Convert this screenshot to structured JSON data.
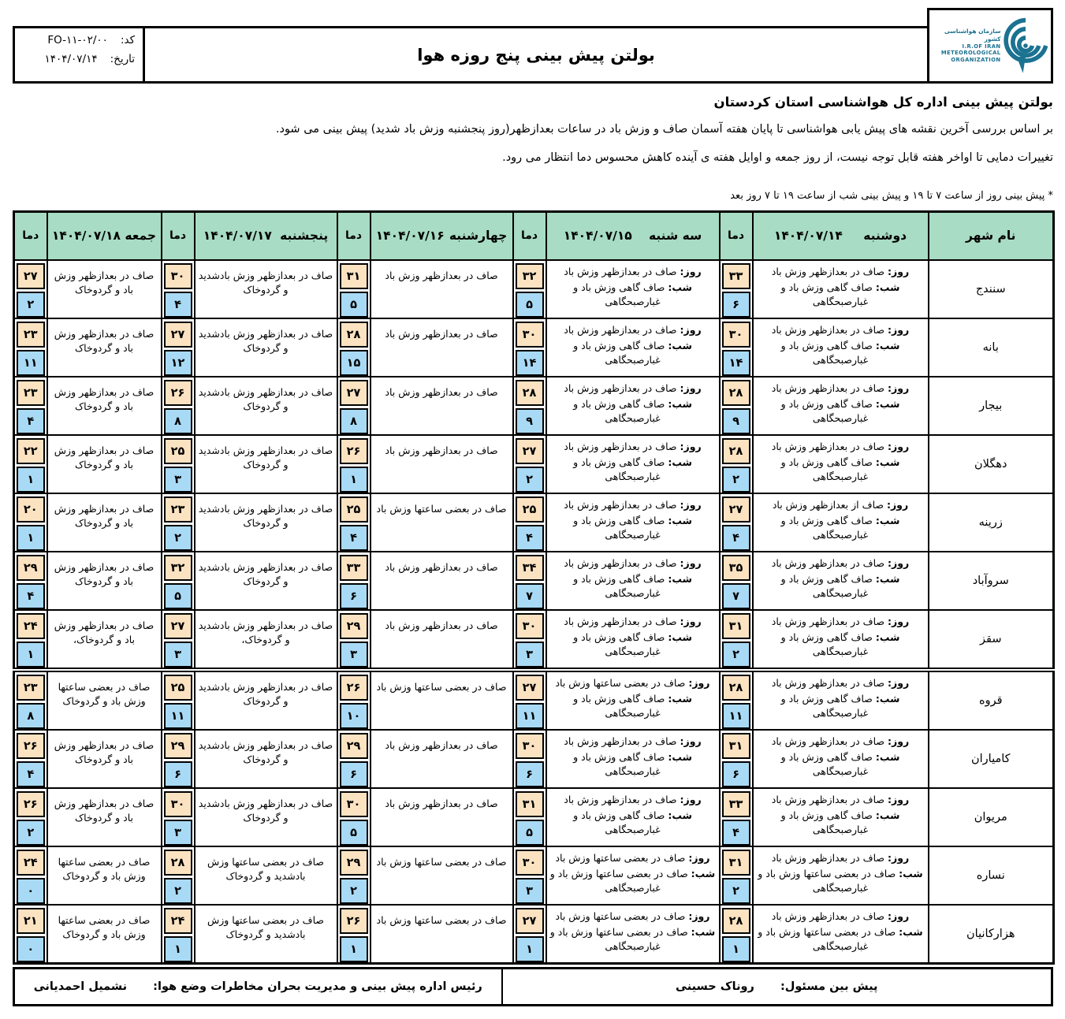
{
  "meta": {
    "code_label": "کد:",
    "code_value": "FO-۱۱-۰۲/۰۰",
    "date_label": "تاریخ:",
    "date_value": "۱۴۰۴/۰۷/۱۴"
  },
  "title": "بولتن پیش بینی پنج روزه هوا",
  "logo": {
    "line_fa": "سازمان هواشناسی کشور",
    "line1": "I.R.OF IRAN",
    "line2": "METEOROLOGICAL",
    "line3": "ORGANIZATION",
    "color": "#1b7291"
  },
  "intro": {
    "heading": "بولتن پیش بینی اداره کل هواشناسی استان کردستان",
    "line1": "بر اساس بررسی آخرین نقشه های پیش یابی هواشناسی تا پایان هفته آسمان صاف و وزش باد در ساعات بعدازظهر(روز پنجشنبه وزش باد شدید) پیش بینی می شود.",
    "line2": "تغییرات دمایی تا اواخر هفته قابل توجه نیست، از روز جمعه و اوایل هفته ی آینده کاهش محسوس دما انتظار می رود.",
    "note": "* پیش بینی روز از ساعت ۷ تا ۱۹ و پیش بینی شب از ساعت ۱۹ تا ۷ روز بعد"
  },
  "footer": {
    "right_label": "پیش بین مسئول:",
    "right_value": "روناک حسینی",
    "left_label": "رئیس اداره پیش بینی و مدیریت بحران مخاطرات وضع هوا:",
    "left_value": "نشمیل احمدیانی"
  },
  "table": {
    "city_header": "نام شهر",
    "temp_header": "دما",
    "colors": {
      "header_bg": "#a8dcc4",
      "day_temp_bg": "#fbe3c2",
      "night_temp_bg": "#a9daf5"
    },
    "days": [
      {
        "weekday": "دوشنبه",
        "date": "۱۴۰۴/۰۷/۱۴"
      },
      {
        "weekday": "سه شنبه",
        "date": "۱۴۰۴/۰۷/۱۵"
      },
      {
        "weekday": "چهارشنبه",
        "date": "۱۴۰۴/۰۷/۱۶"
      },
      {
        "weekday": "پنجشنبه",
        "date": "۱۴۰۴/۰۷/۱۷"
      },
      {
        "weekday": "جمعه",
        "date": "۱۴۰۴/۰۷/۱۸"
      }
    ],
    "rows": [
      {
        "city": "سنندج",
        "days": [
          {
            "day_label": "روز:",
            "day_text": "صاف در بعدازظهر وزش باد",
            "night_label": "شب:",
            "night_text": "صاف گاهی وزش باد و غبارصبحگاهی",
            "tmax": "۳۳",
            "tmin": "۶"
          },
          {
            "day_label": "روز:",
            "day_text": "صاف در بعدازظهر وزش باد",
            "night_label": "شب:",
            "night_text": "صاف گاهی وزش باد و غبارصبحگاهی",
            "tmax": "۳۲",
            "tmin": "۵"
          },
          {
            "text": "صاف در بعدازظهر وزش باد",
            "tmax": "۳۱",
            "tmin": "۵"
          },
          {
            "text": "صاف در بعدازظهر وزش بادشدید و گردوخاک",
            "tmax": "۳۰",
            "tmin": "۴"
          },
          {
            "text": "صاف در بعدازظهر وزش باد و گردوخاک",
            "tmax": "۲۷",
            "tmin": "۲"
          }
        ]
      },
      {
        "city": "بانه",
        "days": [
          {
            "day_label": "روز:",
            "day_text": "صاف در بعدازظهر وزش باد",
            "night_label": "شب:",
            "night_text": "صاف گاهی وزش باد و غبارصبحگاهی",
            "tmax": "۳۰",
            "tmin": "۱۴"
          },
          {
            "day_label": "روز:",
            "day_text": "صاف در بعدازظهر وزش باد",
            "night_label": "شب:",
            "night_text": "صاف گاهی وزش باد و غبارصبحگاهی",
            "tmax": "۳۰",
            "tmin": "۱۴"
          },
          {
            "text": "صاف در بعدازظهر وزش باد",
            "tmax": "۲۸",
            "tmin": "۱۵"
          },
          {
            "text": "صاف در بعدازظهر وزش بادشدید و گردوخاک",
            "tmax": "۲۷",
            "tmin": "۱۲"
          },
          {
            "text": "صاف در بعدازظهر وزش باد و گردوخاک",
            "tmax": "۲۳",
            "tmin": "۱۱"
          }
        ]
      },
      {
        "city": "بیجار",
        "days": [
          {
            "day_label": "روز:",
            "day_text": "صاف در بعدازظهر وزش باد",
            "night_label": "شب:",
            "night_text": "صاف گاهی وزش باد و غبارصبحگاهی",
            "tmax": "۲۸",
            "tmin": "۹"
          },
          {
            "day_label": "روز:",
            "day_text": "صاف در بعدازظهر وزش باد",
            "night_label": "شب:",
            "night_text": "صاف گاهی وزش باد و غبارصبحگاهی",
            "tmax": "۲۸",
            "tmin": "۹"
          },
          {
            "text": "صاف در بعدازظهر وزش باد",
            "tmax": "۲۷",
            "tmin": "۸"
          },
          {
            "text": "صاف در بعدازظهر وزش بادشدید و گردوخاک",
            "tmax": "۲۶",
            "tmin": "۸"
          },
          {
            "text": "صاف در بعدازظهر وزش باد و گردوخاک",
            "tmax": "۲۳",
            "tmin": "۴"
          }
        ]
      },
      {
        "city": "دهگلان",
        "days": [
          {
            "day_label": "روز:",
            "day_text": "صاف در بعدازظهر وزش باد",
            "night_label": "شب:",
            "night_text": "صاف گاهی وزش باد و غبارصبحگاهی",
            "tmax": "۲۸",
            "tmin": "۲"
          },
          {
            "day_label": "روز:",
            "day_text": "صاف در بعدازظهر وزش باد",
            "night_label": "شب:",
            "night_text": "صاف گاهی وزش باد و غبارصبحگاهی",
            "tmax": "۲۷",
            "tmin": "۲"
          },
          {
            "text": "صاف در بعدازظهر وزش باد",
            "tmax": "۲۶",
            "tmin": "۱"
          },
          {
            "text": "صاف در بعدازظهر وزش بادشدید و گردوخاک",
            "tmax": "۲۵",
            "tmin": "۳"
          },
          {
            "text": "صاف در بعدازظهر وزش باد و گردوخاک",
            "tmax": "۲۲",
            "tmin": "۱"
          }
        ]
      },
      {
        "city": "زرینه",
        "days": [
          {
            "day_label": "روز:",
            "day_text": "صاف از بعدازظهر وزش باد",
            "night_label": "شب:",
            "night_text": "صاف گاهی وزش باد و غبارصبحگاهی",
            "tmax": "۲۷",
            "tmin": "۴"
          },
          {
            "day_label": "روز:",
            "day_text": "صاف در بعدازظهر وزش باد",
            "night_label": "شب:",
            "night_text": "صاف گاهی وزش باد و غبارصبحگاهی",
            "tmax": "۲۵",
            "tmin": "۴"
          },
          {
            "text": "صاف در بعضی ساعتها وزش باد",
            "tmax": "۲۵",
            "tmin": "۴"
          },
          {
            "text": "صاف در بعدازظهر وزش بادشدید و گردوخاک",
            "tmax": "۲۳",
            "tmin": "۲"
          },
          {
            "text": "صاف در بعدازظهر وزش باد و گردوخاک",
            "tmax": "۲۰",
            "tmin": "۱"
          }
        ]
      },
      {
        "city": "سروآباد",
        "days": [
          {
            "day_label": "روز:",
            "day_text": "صاف در بعدازظهر وزش باد",
            "night_label": "شب:",
            "night_text": "صاف گاهی وزش باد و غبارصبحگاهی",
            "tmax": "۳۵",
            "tmin": "۷"
          },
          {
            "day_label": "روز:",
            "day_text": "صاف در بعدازظهر وزش باد",
            "night_label": "شب:",
            "night_text": "صاف گاهی وزش باد و غبارصبحگاهی",
            "tmax": "۳۴",
            "tmin": "۷"
          },
          {
            "text": "صاف در بعدازظهر وزش باد",
            "tmax": "۳۳",
            "tmin": "۶"
          },
          {
            "text": "صاف در بعدازظهر وزش بادشدید و گردوخاک",
            "tmax": "۳۲",
            "tmin": "۵"
          },
          {
            "text": "صاف در بعدازظهر وزش باد و گردوخاک",
            "tmax": "۲۹",
            "tmin": "۴"
          }
        ]
      },
      {
        "city": "سقز",
        "days": [
          {
            "day_label": "روز:",
            "day_text": "صاف در بعدازظهر وزش باد",
            "night_label": "شب:",
            "night_text": "صاف گاهی وزش باد و غبارصبحگاهی",
            "tmax": "۳۱",
            "tmin": "۲"
          },
          {
            "day_label": "روز:",
            "day_text": "صاف در بعدازظهر وزش باد",
            "night_label": "شب:",
            "night_text": "صاف گاهی وزش باد و غبارصبحگاهی",
            "tmax": "۳۰",
            "tmin": "۳"
          },
          {
            "text": "صاف در بعدازظهر وزش باد",
            "tmax": "۲۹",
            "tmin": "۳"
          },
          {
            "text": "صاف در بعدازظهر وزش بادشدید و گردوخاک،",
            "tmax": "۲۷",
            "tmin": "۳"
          },
          {
            "text": "صاف در بعدازظهر وزش باد و گردوخاک،",
            "tmax": "۲۴",
            "tmin": "۱"
          }
        ]
      },
      {
        "city": "قروه",
        "days": [
          {
            "day_label": "روز:",
            "day_text": "صاف در بعدازظهر وزش باد",
            "night_label": "شب:",
            "night_text": "صاف گاهی وزش باد و غبارصبحگاهی",
            "tmax": "۲۸",
            "tmin": "۱۱"
          },
          {
            "day_label": "روز:",
            "day_text": "صاف در بعضی ساعتها وزش باد",
            "night_label": "شب:",
            "night_text": "صاف گاهی وزش باد و غبارصبحگاهی",
            "tmax": "۲۷",
            "tmin": "۱۱"
          },
          {
            "text": "صاف در بعضی ساعتها وزش باد",
            "tmax": "۲۶",
            "tmin": "۱۰"
          },
          {
            "text": "صاف در بعدازظهر وزش بادشدید و گردوخاک",
            "tmax": "۲۵",
            "tmin": "۱۱"
          },
          {
            "text": "صاف در بعضی ساعتها وزش باد و گردوخاک",
            "tmax": "۲۳",
            "tmin": "۸"
          }
        ]
      },
      {
        "city": "کامیاران",
        "days": [
          {
            "day_label": "روز:",
            "day_text": "صاف در بعدازظهر وزش باد",
            "night_label": "شب:",
            "night_text": "صاف گاهی وزش باد و غبارصبحگاهی",
            "tmax": "۳۱",
            "tmin": "۶"
          },
          {
            "day_label": "روز:",
            "day_text": "صاف در بعدازظهر وزش باد",
            "night_label": "شب:",
            "night_text": "صاف گاهی وزش باد و غبارصبحگاهی",
            "tmax": "۳۰",
            "tmin": "۶"
          },
          {
            "text": "صاف در بعدازظهر وزش باد",
            "tmax": "۲۹",
            "tmin": "۶"
          },
          {
            "text": "صاف در بعدازظهر وزش بادشدید و گردوخاک",
            "tmax": "۲۹",
            "tmin": "۶"
          },
          {
            "text": "صاف در بعدازظهر وزش باد و گردوخاک",
            "tmax": "۲۶",
            "tmin": "۴"
          }
        ]
      },
      {
        "city": "مریوان",
        "days": [
          {
            "day_label": "روز:",
            "day_text": "صاف در بعدازظهر وزش باد",
            "night_label": "شب:",
            "night_text": "صاف گاهی وزش باد و غبارصبحگاهی",
            "tmax": "۳۳",
            "tmin": "۴"
          },
          {
            "day_label": "روز:",
            "day_text": "صاف در بعدازظهر وزش باد",
            "night_label": "شب:",
            "night_text": "صاف گاهی وزش باد و غبارصبحگاهی",
            "tmax": "۳۱",
            "tmin": "۵"
          },
          {
            "text": "صاف در بعدازظهر وزش باد",
            "tmax": "۳۰",
            "tmin": "۵"
          },
          {
            "text": "صاف در بعدازظهر وزش بادشدید و گردوخاک",
            "tmax": "۳۰",
            "tmin": "۳"
          },
          {
            "text": "صاف در بعدازظهر وزش باد و گردوخاک",
            "tmax": "۲۶",
            "tmin": "۲"
          }
        ]
      },
      {
        "city": "نساره",
        "days": [
          {
            "day_label": "روز:",
            "day_text": "صاف در بعدازظهر وزش باد",
            "night_label": "شب:",
            "night_text": "صاف در بعضی ساعتها وزش باد و غبارصبحگاهی",
            "tmax": "۳۱",
            "tmin": "۲"
          },
          {
            "day_label": "روز:",
            "day_text": "صاف در بعضی ساعتها وزش باد",
            "night_label": "شب:",
            "night_text": "صاف در بعضی ساعتها وزش باد و غبارصبحگاهی",
            "tmax": "۳۰",
            "tmin": "۳"
          },
          {
            "text": "صاف در بعضی ساعتها وزش باد",
            "tmax": "۲۹",
            "tmin": "۲"
          },
          {
            "text": "صاف در بعضی ساعتها وزش بادشدید و گردوخاک",
            "tmax": "۲۸",
            "tmin": "۲"
          },
          {
            "text": "صاف در بعضی ساعتها وزش باد و گردوخاک",
            "tmax": "۲۴",
            "tmin": "۰"
          }
        ]
      },
      {
        "city": "هزارکانیان",
        "days": [
          {
            "day_label": "روز:",
            "day_text": "صاف در بعدازظهر وزش باد",
            "night_label": "شب:",
            "night_text": "صاف در بعضی ساعتها وزش باد و غبارصبحگاهی",
            "tmax": "۲۸",
            "tmin": "۱"
          },
          {
            "day_label": "روز:",
            "day_text": "صاف در بعضی ساعتها وزش باد",
            "night_label": "شب:",
            "night_text": "صاف در بعضی ساعتها وزش باد و غبارصبحگاهی",
            "tmax": "۲۷",
            "tmin": "۱"
          },
          {
            "text": "صاف در بعضی ساعتها وزش باد",
            "tmax": "۲۶",
            "tmin": "۱"
          },
          {
            "text": "صاف در بعضی ساعتها وزش بادشدید و گردوخاک",
            "tmax": "۲۴",
            "tmin": "۱"
          },
          {
            "text": "صاف در بعضی ساعتها وزش باد و گردوخاک",
            "tmax": "۲۱",
            "tmin": "۰"
          }
        ]
      }
    ]
  }
}
